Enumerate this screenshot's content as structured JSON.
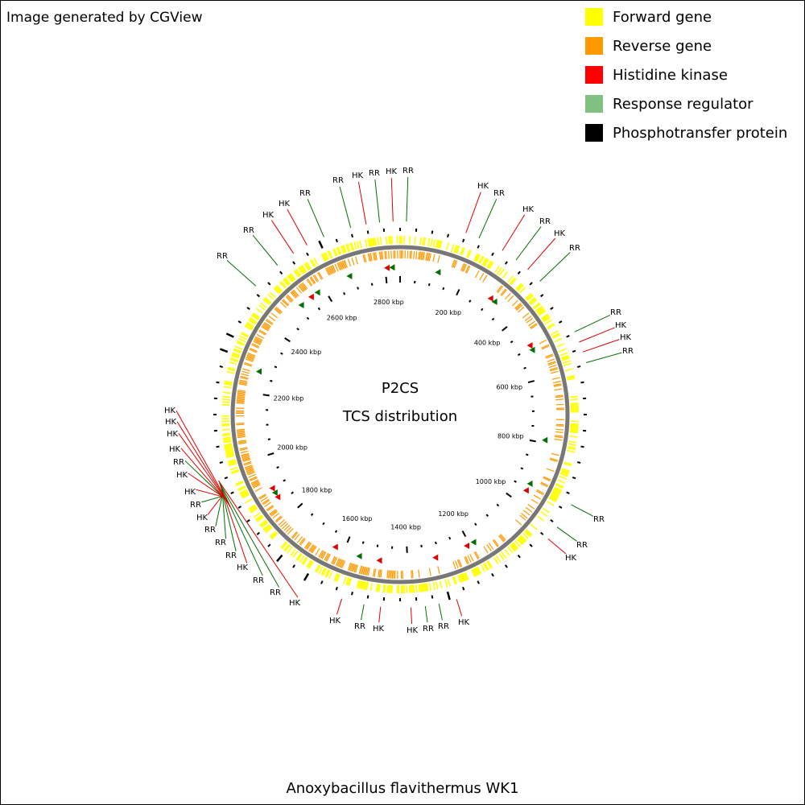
{
  "header": {
    "title": "Image generated by CGView"
  },
  "legend": [
    {
      "label": "Forward gene",
      "color": "#ffff00"
    },
    {
      "label": "Reverse gene",
      "color": "#ff9900"
    },
    {
      "label": "Histidine kinase",
      "color": "#ff0000"
    },
    {
      "label": "Response regulator",
      "color": "#80c080"
    },
    {
      "label": "Phosphotransfer protein",
      "color": "#000000"
    }
  ],
  "center": {
    "title": "P2CS",
    "subtitle": "TCS distribution"
  },
  "ruler_labels": [
    "200 kbp",
    "400 kbp",
    "600 kbp",
    "800 kbp",
    "1000 kbp",
    "1200 kbp",
    "1400 kbp",
    "1600 kbp",
    "1800 kbp",
    "2000 kbp",
    "2200 kbp",
    "2400 kbp",
    "2600 kbp",
    "2800 kbp"
  ],
  "features": [
    {
      "label": "RR",
      "color": "#007000"
    },
    {
      "label": "HK",
      "color": "#e00000"
    },
    {
      "label": "RR",
      "color": "#007000"
    },
    {
      "label": "HK",
      "color": "#e00000"
    },
    {
      "label": "RR",
      "color": "#007000"
    },
    {
      "label": "HK",
      "color": "#e00000"
    },
    {
      "label": "RR",
      "color": "#007000"
    },
    {
      "label": "HK",
      "color": "#e00000"
    },
    {
      "label": "RR",
      "color": "#007000"
    },
    {
      "label": "HK",
      "color": "#e00000"
    },
    {
      "label": "RR",
      "color": "#007000"
    },
    {
      "label": "RR",
      "color": "#007000"
    },
    {
      "label": "HK",
      "color": "#e00000"
    },
    {
      "label": "HK",
      "color": "#e00000"
    },
    {
      "label": "RR",
      "color": "#007000"
    },
    {
      "label": "RR",
      "color": "#007000"
    },
    {
      "label": "RR",
      "color": "#007000"
    },
    {
      "label": "HK",
      "color": "#e00000"
    },
    {
      "label": "HK",
      "color": "#e00000"
    },
    {
      "label": "RR",
      "color": "#007000"
    },
    {
      "label": "RR",
      "color": "#007000"
    },
    {
      "label": "HK",
      "color": "#e00000"
    },
    {
      "label": "HK",
      "color": "#e00000"
    },
    {
      "label": "RR",
      "color": "#007000"
    },
    {
      "label": "HK",
      "color": "#e00000"
    },
    {
      "label": "HK",
      "color": "#e00000"
    },
    {
      "label": "RR",
      "color": "#007000"
    },
    {
      "label": "RR",
      "color": "#007000"
    },
    {
      "label": "HK",
      "color": "#e00000"
    },
    {
      "label": "RR",
      "color": "#007000"
    },
    {
      "label": "RR",
      "color": "#007000"
    },
    {
      "label": "RR",
      "color": "#007000"
    },
    {
      "label": "HK",
      "color": "#e00000"
    },
    {
      "label": "RR",
      "color": "#007000"
    },
    {
      "label": "HK",
      "color": "#e00000"
    },
    {
      "label": "HK",
      "color": "#e00000"
    },
    {
      "label": "RR",
      "color": "#007000"
    },
    {
      "label": "HK",
      "color": "#e00000"
    },
    {
      "label": "HK",
      "color": "#e00000"
    },
    {
      "label": "HK",
      "color": "#e00000"
    },
    {
      "label": "HK",
      "color": "#e00000"
    },
    {
      "label": "RR",
      "color": "#007000"
    },
    {
      "label": "RR",
      "color": "#007000"
    },
    {
      "label": "HK",
      "color": "#e00000"
    },
    {
      "label": "HK",
      "color": "#e00000"
    },
    {
      "label": "RR",
      "color": "#007000"
    }
  ],
  "footer": {
    "organism": "Anoxybacillus flavithermus WK1"
  }
}
